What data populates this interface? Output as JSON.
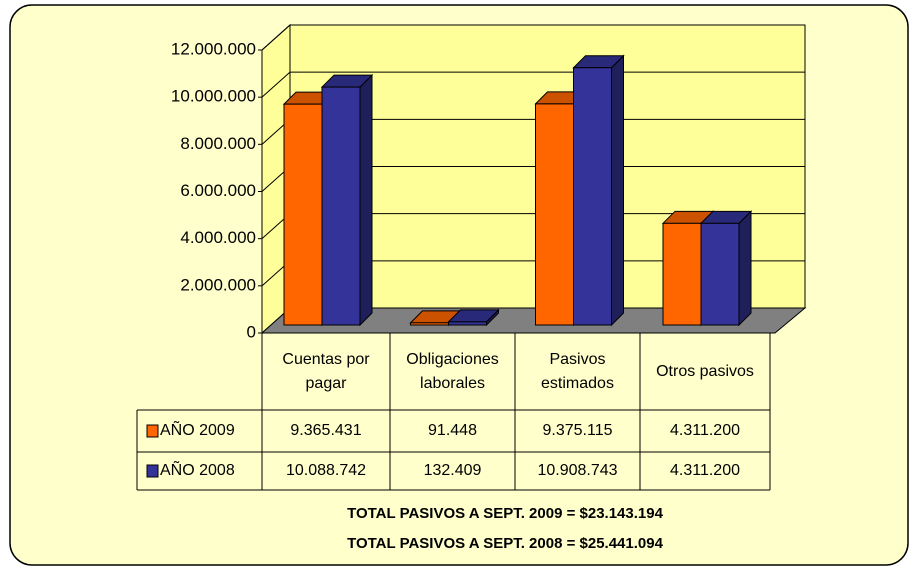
{
  "chart_data": {
    "type": "bar",
    "categories": [
      "Cuentas por pagar",
      "Obligaciones laborales",
      "Pasivos estimados",
      "Otros pasivos"
    ],
    "series": [
      {
        "name": "AÑO 2009",
        "color": "#FF6600",
        "values": [
          9365431,
          91448,
          9375115,
          4311200
        ],
        "value_labels": [
          "9.365.431",
          "91.448",
          "9.375.115",
          "4.311.200"
        ]
      },
      {
        "name": "AÑO 2008",
        "color": "#333399",
        "values": [
          10088742,
          132409,
          10908743,
          4311200
        ],
        "value_labels": [
          "10.088.742",
          "132.409",
          "10.908.743",
          "4.311.200"
        ]
      }
    ],
    "ylim": [
      0,
      12000000
    ],
    "yticks": [
      0,
      {
        "value": 2000000,
        "label": "2.000.000"
      },
      {
        "value": 4000000,
        "label": "4.000.000"
      },
      {
        "value": 6000000,
        "label": "6.000.000"
      },
      {
        "value": 8000000,
        "label": "8.000.000"
      },
      {
        "value": 10000000,
        "label": "10.000.000"
      },
      {
        "value": 12000000,
        "label": "12.000.000"
      }
    ],
    "grid": true,
    "annotations": [
      "TOTAL PASIVOS A SEPT. 2009 = $23.143.194",
      "TOTAL PASIVOS A SEPT. 2008 = $25.441.094"
    ]
  }
}
